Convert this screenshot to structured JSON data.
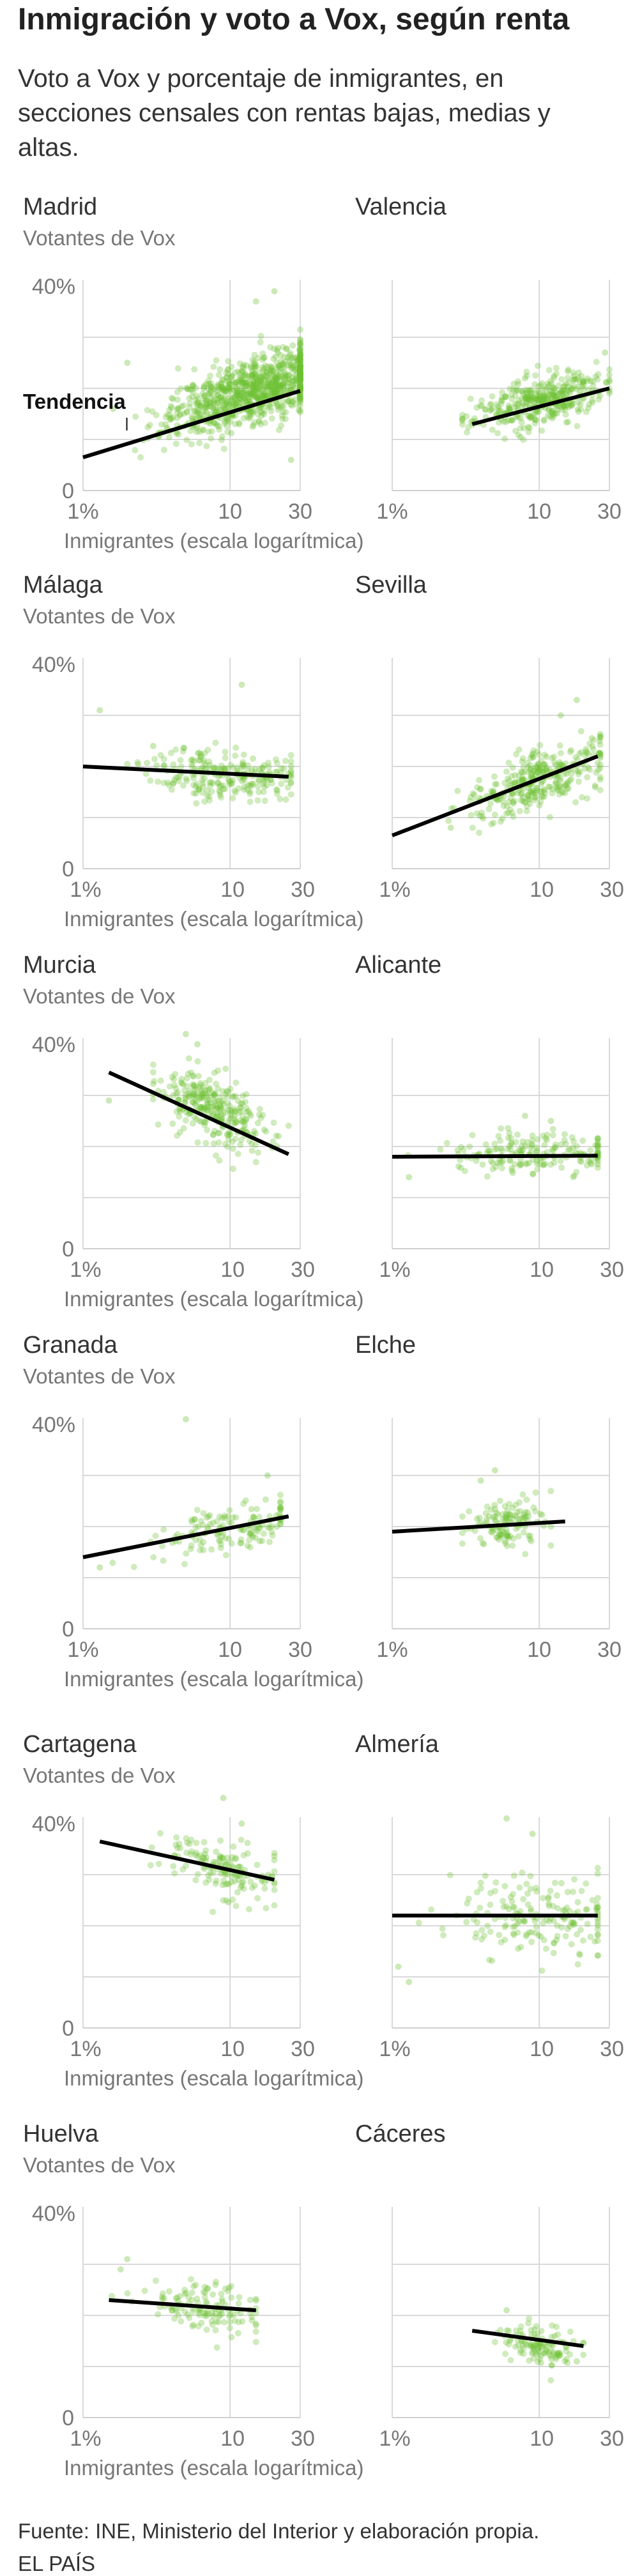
{
  "header": {
    "title": "Inmigración y voto a Vox, según renta",
    "subtitle": "Voto a Vox y porcentaje de inmigrantes, en secciones censales con rentas bajas, medias y altas."
  },
  "footer": {
    "source": "Fuente: INE, Ministerio del Interior y elaboración propia.",
    "brand": "EL PAÍS"
  },
  "colors": {
    "points": "#6cc033",
    "trend": "#000000",
    "grid": "#d9d9d9",
    "axis_text": "#777777",
    "label_text": "#333333"
  },
  "chart_data": [
    {
      "type": "scatter",
      "title": "Madrid",
      "ylabel": "Votantes de Vox",
      "xlabel": "Inmigrantes (escala logarítmica)",
      "x_scale": "log",
      "xlim": [
        1,
        30
      ],
      "ylim": [
        0,
        40
      ],
      "x_ticks": [
        "1%",
        "10",
        "30"
      ],
      "y_ticks": [
        "0",
        "40%"
      ],
      "point_count": 900,
      "point_seed": 11,
      "point_cloud": {
        "x_range": [
          1.6,
          30
        ],
        "x_center": 14,
        "y_sd": 3.2,
        "slope": 10.2,
        "intercept": 8.0,
        "outliers": [
          [
            20,
            39
          ],
          [
            15,
            37
          ],
          [
            2,
            25
          ],
          [
            1.6,
            16
          ],
          [
            26,
            6
          ]
        ]
      },
      "trend": {
        "x": [
          1,
          30
        ],
        "y": [
          6.5,
          19.5
        ]
      },
      "annotation": {
        "label": "Tendencia",
        "x": 1.5,
        "y": 15
      }
    },
    {
      "type": "scatter",
      "title": "Valencia",
      "ylabel": "",
      "xlabel": "",
      "x_scale": "log",
      "xlim": [
        1,
        30
      ],
      "ylim": [
        0,
        40
      ],
      "x_ticks": [
        "1%",
        "10",
        "30"
      ],
      "y_ticks": [],
      "point_count": 380,
      "point_seed": 23,
      "point_cloud": {
        "x_range": [
          3,
          30
        ],
        "x_center": 10,
        "y_sd": 2.3,
        "slope": 6.0,
        "intercept": 11.4,
        "outliers": [
          [
            28,
            27
          ],
          [
            8,
            22
          ]
        ]
      },
      "trend": {
        "x": [
          3.5,
          30
        ],
        "y": [
          13,
          20
        ]
      },
      "annotation": null
    },
    {
      "type": "scatter",
      "title": "Málaga",
      "ylabel": "Votantes de Vox",
      "xlabel": "Inmigrantes (escala logarítmica)",
      "x_scale": "log",
      "xlim": [
        1,
        30
      ],
      "ylim": [
        0,
        40
      ],
      "x_ticks": [
        "1%",
        "10",
        "30"
      ],
      "y_ticks": [
        "0",
        "40%"
      ],
      "point_count": 240,
      "point_seed": 37,
      "point_cloud": {
        "x_range": [
          2,
          26
        ],
        "x_center": 9,
        "y_sd": 2.5,
        "slope": -1.5,
        "intercept": 19.9,
        "outliers": [
          [
            12,
            36
          ],
          [
            1.3,
            31
          ],
          [
            3,
            24
          ]
        ]
      },
      "trend": {
        "x": [
          1,
          25
        ],
        "y": [
          20,
          18
        ]
      },
      "annotation": null
    },
    {
      "type": "scatter",
      "title": "Sevilla",
      "ylabel": "",
      "xlabel": "",
      "x_scale": "log",
      "xlim": [
        1,
        30
      ],
      "ylim": [
        0,
        40
      ],
      "x_ticks": [
        "1%",
        "10",
        "30"
      ],
      "y_ticks": [],
      "point_count": 330,
      "point_seed": 41,
      "point_cloud": {
        "x_range": [
          1.8,
          26
        ],
        "x_center": 10,
        "y_sd": 2.8,
        "slope": 11.0,
        "intercept": 6.3,
        "outliers": [
          [
            18,
            33
          ],
          [
            14,
            30
          ],
          [
            2.5,
            8
          ]
        ]
      },
      "trend": {
        "x": [
          1,
          25
        ],
        "y": [
          6.5,
          22
        ]
      },
      "annotation": null
    },
    {
      "type": "scatter",
      "title": "Murcia",
      "ylabel": "Votantes de Vox",
      "xlabel": "Inmigrantes (escala logarítmica)",
      "x_scale": "log",
      "xlim": [
        1,
        30
      ],
      "ylim": [
        0,
        40
      ],
      "x_ticks": [
        "1%",
        "10",
        "30"
      ],
      "y_ticks": [
        "0",
        "40%"
      ],
      "point_count": 300,
      "point_seed": 53,
      "point_cloud": {
        "x_range": [
          3,
          25
        ],
        "x_center": 8,
        "y_sd": 3.3,
        "slope": -11.7,
        "intercept": 37.5,
        "outliers": [
          [
            5,
            42
          ],
          [
            6,
            40
          ],
          [
            1.5,
            29
          ]
        ]
      },
      "trend": {
        "x": [
          1.5,
          25
        ],
        "y": [
          34.5,
          18.5
        ]
      },
      "annotation": null
    },
    {
      "type": "scatter",
      "title": "Alicante",
      "ylabel": "",
      "xlabel": "",
      "x_scale": "log",
      "xlim": [
        1,
        30
      ],
      "ylim": [
        0,
        40
      ],
      "x_ticks": [
        "1%",
        "10",
        "30"
      ],
      "y_ticks": [],
      "point_count": 190,
      "point_seed": 67,
      "point_cloud": {
        "x_range": [
          1.2,
          25
        ],
        "x_center": 9,
        "y_sd": 2.0,
        "slope": 0.3,
        "intercept": 18.0,
        "outliers": [
          [
            8,
            26
          ],
          [
            12,
            25
          ],
          [
            1.3,
            14
          ]
        ]
      },
      "trend": {
        "x": [
          1,
          25
        ],
        "y": [
          18,
          18.2
        ]
      },
      "annotation": null
    },
    {
      "type": "scatter",
      "title": "Granada",
      "ylabel": "Votantes de Vox",
      "xlabel": "Inmigrantes (escala logarítmica)",
      "x_scale": "log",
      "xlim": [
        1,
        30
      ],
      "ylim": [
        0,
        40
      ],
      "x_ticks": [
        "1%",
        "10",
        "30"
      ],
      "y_ticks": [
        "0",
        "40%"
      ],
      "point_count": 140,
      "point_seed": 79,
      "point_cloud": {
        "x_range": [
          1.5,
          22
        ],
        "x_center": 10,
        "y_sd": 2.2,
        "slope": 5.9,
        "intercept": 14.0,
        "outliers": [
          [
            5,
            41
          ],
          [
            18,
            30
          ],
          [
            1.3,
            12
          ]
        ]
      },
      "trend": {
        "x": [
          1,
          25
        ],
        "y": [
          14,
          22
        ]
      },
      "annotation": null
    },
    {
      "type": "scatter",
      "title": "Elche",
      "ylabel": "",
      "xlabel": "",
      "x_scale": "log",
      "xlim": [
        1,
        30
      ],
      "ylim": [
        0,
        40
      ],
      "x_ticks": [
        "1%",
        "10",
        "30"
      ],
      "y_ticks": [],
      "point_count": 130,
      "point_seed": 83,
      "point_cloud": {
        "x_range": [
          3,
          12
        ],
        "x_center": 6,
        "y_sd": 2.3,
        "slope": 2.0,
        "intercept": 19.0,
        "outliers": [
          [
            5,
            31
          ],
          [
            4,
            29
          ]
        ]
      },
      "trend": {
        "x": [
          1,
          15
        ],
        "y": [
          19,
          21
        ]
      },
      "annotation": null
    },
    {
      "type": "scatter",
      "title": "Cartagena",
      "ylabel": "Votantes de Vox",
      "xlabel": "Inmigrantes (escala logarítmica)",
      "x_scale": "log",
      "xlim": [
        1,
        30
      ],
      "ylim": [
        0,
        40
      ],
      "x_ticks": [
        "1%",
        "10",
        "30"
      ],
      "y_ticks": [
        "0",
        "40%"
      ],
      "point_count": 150,
      "point_seed": 97,
      "point_cloud": {
        "x_range": [
          2,
          20
        ],
        "x_center": 8,
        "y_sd": 3.0,
        "slope": -6.4,
        "intercept": 37.2,
        "outliers": [
          [
            9,
            45
          ],
          [
            12,
            40
          ]
        ]
      },
      "trend": {
        "x": [
          1.3,
          20
        ],
        "y": [
          36.5,
          29
        ]
      },
      "annotation": null
    },
    {
      "type": "scatter",
      "title": "Almería",
      "ylabel": "",
      "xlabel": "",
      "x_scale": "log",
      "xlim": [
        1,
        30
      ],
      "ylim": [
        0,
        40
      ],
      "x_ticks": [
        "1%",
        "10",
        "30"
      ],
      "y_ticks": [],
      "point_count": 180,
      "point_seed": 101,
      "point_cloud": {
        "x_range": [
          1.1,
          25
        ],
        "x_center": 10,
        "y_sd": 4.0,
        "slope": 0.0,
        "intercept": 22.0,
        "outliers": [
          [
            6,
            41
          ],
          [
            9,
            38
          ],
          [
            1.1,
            12
          ],
          [
            1.3,
            9
          ]
        ]
      },
      "trend": {
        "x": [
          1,
          25
        ],
        "y": [
          22,
          22
        ]
      },
      "annotation": null
    },
    {
      "type": "scatter",
      "title": "Huelva",
      "ylabel": "Votantes de Vox",
      "xlabel": "Inmigrantes (escala logarítmica)",
      "x_scale": "log",
      "xlim": [
        1,
        30
      ],
      "ylim": [
        0,
        40
      ],
      "x_ticks": [
        "1%",
        "10",
        "30"
      ],
      "y_ticks": [
        "0",
        "40%"
      ],
      "point_count": 130,
      "point_seed": 109,
      "point_cloud": {
        "x_range": [
          1.5,
          15
        ],
        "x_center": 7,
        "y_sd": 2.6,
        "slope": -2.2,
        "intercept": 23.3,
        "outliers": [
          [
            2,
            31
          ],
          [
            1.8,
            29
          ]
        ]
      },
      "trend": {
        "x": [
          1.5,
          15
        ],
        "y": [
          23,
          21
        ]
      },
      "annotation": null
    },
    {
      "type": "scatter",
      "title": "Cáceres",
      "ylabel": "",
      "xlabel": "",
      "x_scale": "log",
      "xlim": [
        1,
        30
      ],
      "ylim": [
        0,
        40
      ],
      "x_ticks": [
        "1%",
        "10",
        "30"
      ],
      "y_ticks": [],
      "point_count": 120,
      "point_seed": 113,
      "point_cloud": {
        "x_range": [
          5,
          20
        ],
        "x_center": 10,
        "y_sd": 1.8,
        "slope": -5.0,
        "intercept": 19.0,
        "outliers": [
          [
            6,
            21
          ],
          [
            18,
            11
          ]
        ]
      },
      "trend": {
        "x": [
          3.5,
          20
        ],
        "y": [
          17,
          14
        ]
      },
      "annotation": null
    }
  ]
}
